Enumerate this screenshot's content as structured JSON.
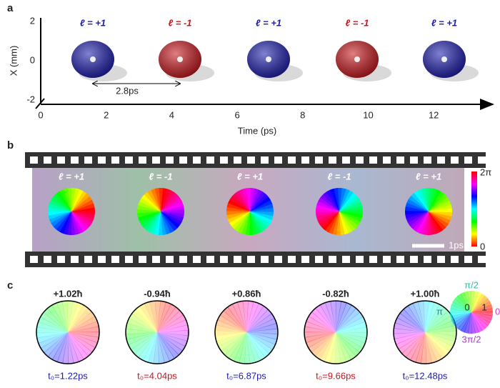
{
  "panels": [
    {
      "label": "a",
      "y_axis_label": "X (mm)",
      "y_ticks": [
        2,
        0,
        -2
      ],
      "x_axis_label": "Time (ps)",
      "x_ticks": [
        0,
        2,
        4,
        6,
        8,
        10,
        12
      ],
      "blobs": [
        {
          "label": "ℓ = +1",
          "color": "#1c1cae"
        },
        {
          "label": "ℓ = -1",
          "color": "#c8161c"
        },
        {
          "label": "ℓ = +1",
          "color": "#1c1cae"
        },
        {
          "label": "ℓ = -1",
          "color": "#c8161c"
        },
        {
          "label": "ℓ = +1",
          "color": "#1c1cae"
        }
      ],
      "interval": "2.8ps"
    },
    {
      "label": "b",
      "frames": [
        "ℓ = +1",
        "ℓ = -1",
        "ℓ = +1",
        "ℓ = -1",
        "ℓ = +1"
      ],
      "colorbar_top": "2π",
      "colorbar_bottom": "0",
      "scale_bar": "1ps"
    },
    {
      "label": "c",
      "frames": [
        {
          "charge": "+1.02ħ",
          "time": "t₀=1.22ps",
          "color": "#1c1cae"
        },
        {
          "charge": "-0.94ħ",
          "time": "t₀=4.04ps",
          "color": "#c8161c"
        },
        {
          "charge": "+0.86ħ",
          "time": "t₀=6.87ps",
          "color": "#1c1cae"
        },
        {
          "charge": "-0.82ħ",
          "time": "t₀=9.66ps",
          "color": "#c8161c"
        },
        {
          "charge": "+1.00ħ",
          "time": "t₀=12.48ps",
          "color": "#1c1cae"
        }
      ],
      "wheel_labels": {
        "top": "π/2",
        "left": "π",
        "right": "0",
        "bottom": "3π/2",
        "center": "0",
        "edge": "1"
      }
    }
  ]
}
